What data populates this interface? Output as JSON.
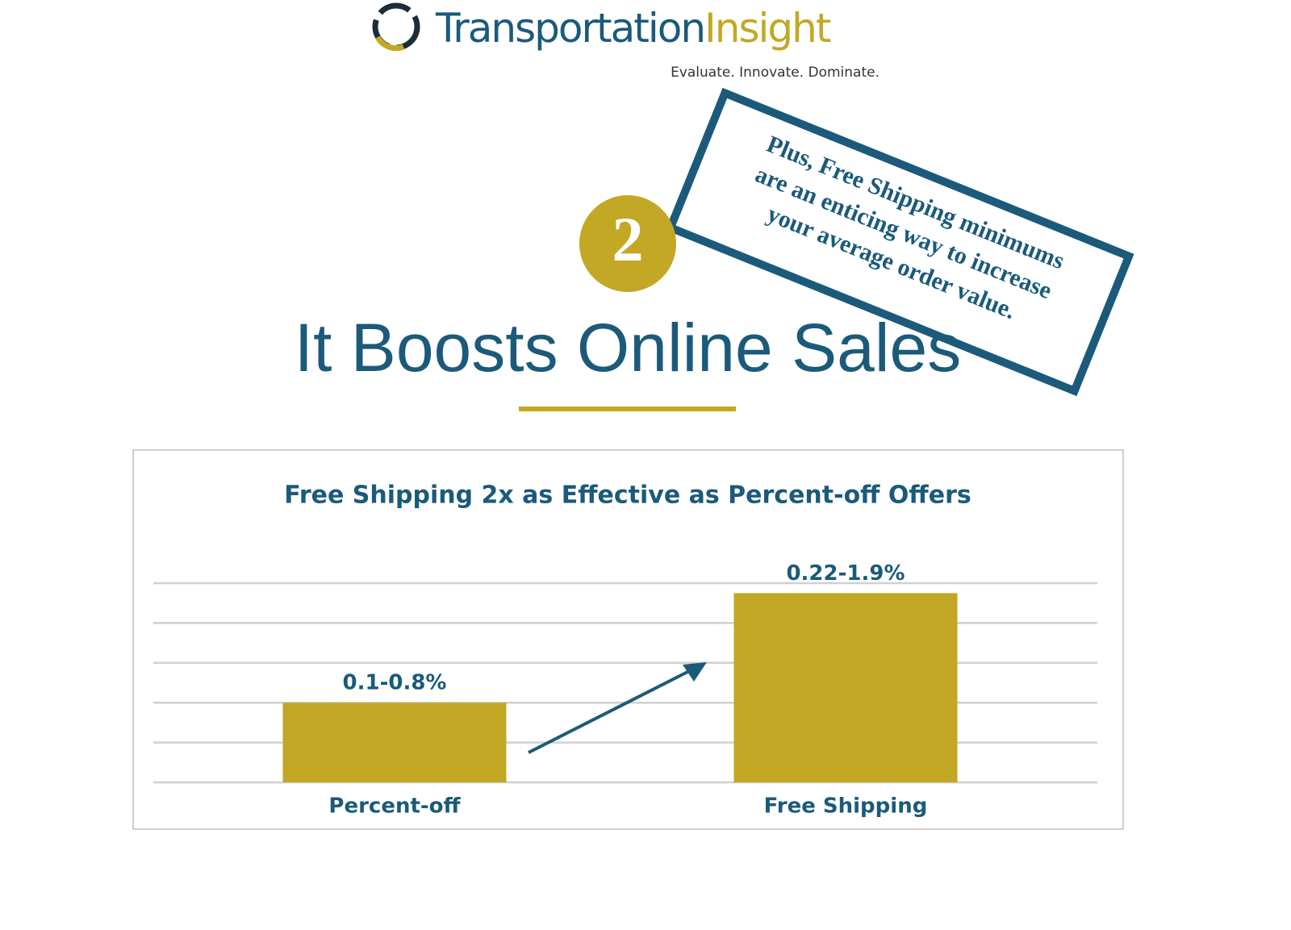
{
  "header": {
    "brand_main": "Transportation",
    "brand_accent": "Insight",
    "tagline": "Evaluate. Innovate. Dominate."
  },
  "badge": "2",
  "stamp": {
    "lines": [
      "Plus, Free Shipping minimums",
      "are an enticing way to increase",
      "your average order value."
    ]
  },
  "heading": "It Boosts Online Sales",
  "chart_data": {
    "type": "bar",
    "title": "Free Shipping 2x as Effective as Percent-off Offers",
    "categories": [
      "Percent-off",
      "Free Shipping"
    ],
    "values": [
      0.8,
      1.9
    ],
    "value_labels": [
      "0.1-0.8%",
      "0.22-1.9%"
    ],
    "color": "#c2a824",
    "ylim": [
      0,
      2
    ],
    "yticks": [
      0,
      0.4,
      0.8,
      1.2,
      1.6,
      2
    ],
    "grid": true
  }
}
